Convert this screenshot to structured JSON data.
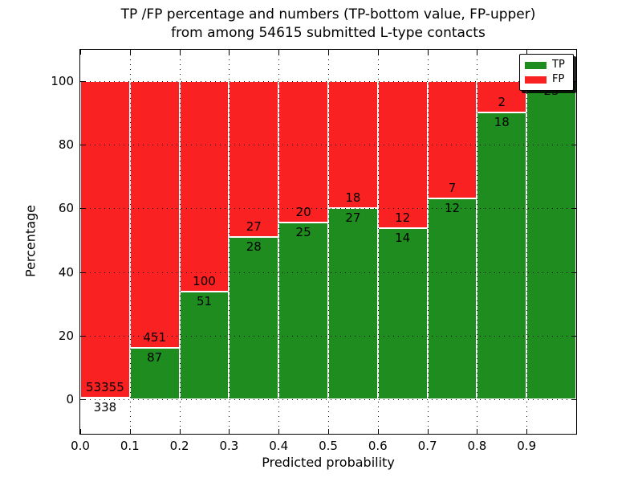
{
  "figure": {
    "title_line1": "TP /FP percentage and numbers (TP-bottom value, FP-upper)",
    "title_line2": "from among 54615 submitted L-type contacts",
    "xlabel": "Predicted probability",
    "ylabel": "Percentage",
    "total_submitted_contacts": 54615
  },
  "chart_data": {
    "type": "bar",
    "stacked": true,
    "title": "TP /FP percentage and numbers (TP-bottom value, FP-upper) from among 54615 submitted L-type contacts",
    "xlabel": "Predicted probability",
    "ylabel": "Percentage",
    "bins": [
      "0.0-0.1",
      "0.1-0.2",
      "0.2-0.3",
      "0.3-0.4",
      "0.4-0.5",
      "0.5-0.6",
      "0.6-0.7",
      "0.7-0.8",
      "0.8-0.9",
      "0.9-1.0"
    ],
    "series": [
      {
        "name": "TP",
        "color": "#1e8c1e",
        "counts": [
          338,
          87,
          51,
          28,
          25,
          27,
          14,
          12,
          18,
          23
        ],
        "percentages": [
          0.63,
          16.17,
          33.77,
          50.91,
          55.56,
          60.0,
          53.85,
          63.16,
          90.0,
          100.0
        ]
      },
      {
        "name": "FP",
        "color": "#f92121",
        "counts": [
          53355,
          451,
          100,
          27,
          20,
          18,
          12,
          7,
          2,
          0
        ],
        "percentages": [
          99.37,
          83.83,
          66.23,
          49.09,
          44.44,
          40.0,
          46.15,
          36.84,
          10.0,
          0.0
        ]
      }
    ],
    "bar_labels": {
      "tp": [
        "338",
        "87",
        "51",
        "28",
        "25",
        "27",
        "14",
        "12",
        "18",
        "23"
      ],
      "fp": [
        "53355",
        "451",
        "100",
        "27",
        "20",
        "18",
        "12",
        "7",
        "2",
        ""
      ]
    },
    "x_ticks": [
      "0.0",
      "0.1",
      "0.2",
      "0.3",
      "0.4",
      "0.5",
      "0.6",
      "0.7",
      "0.8",
      "0.9"
    ],
    "y_ticks": [
      "0",
      "20",
      "40",
      "60",
      "80",
      "100"
    ],
    "xlim": [
      0.0,
      1.0
    ],
    "ylim": [
      -10.8,
      109.8
    ],
    "grid": true,
    "grid_style": "dotted",
    "bar_edge_color": "#ffffff",
    "legend_position": "upper right"
  }
}
